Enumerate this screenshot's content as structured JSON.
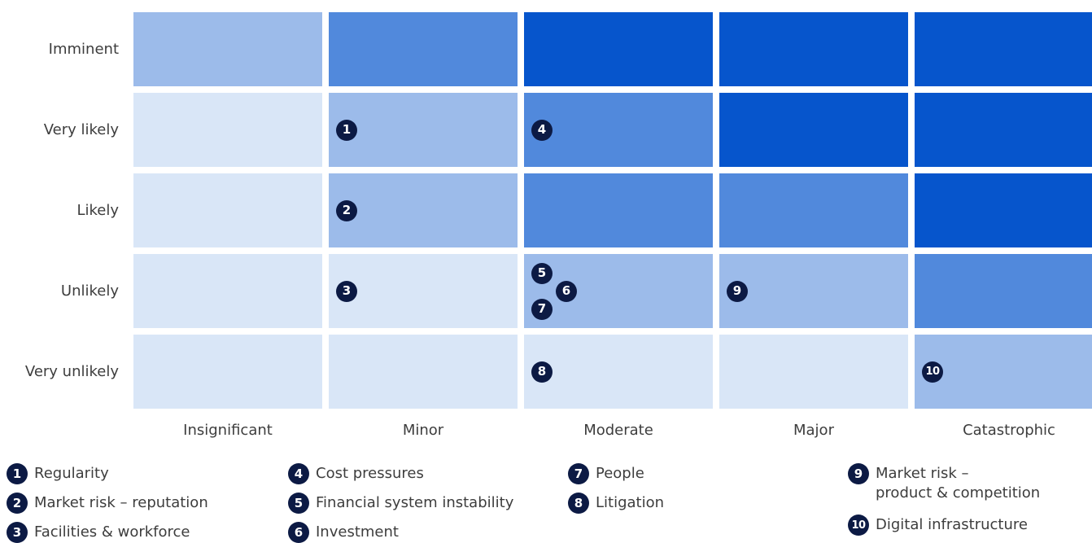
{
  "chart_data": {
    "type": "heatmap",
    "x_categories": [
      "Insignificant",
      "Minor",
      "Moderate",
      "Major",
      "Catastrophic"
    ],
    "y_categories": [
      "Imminent",
      "Very likely",
      "Likely",
      "Unlikely",
      "Very unlikely"
    ],
    "cell_levels": [
      [
        2,
        3,
        4,
        4,
        4
      ],
      [
        1,
        2,
        3,
        4,
        4
      ],
      [
        1,
        2,
        3,
        3,
        4
      ],
      [
        1,
        1,
        2,
        2,
        3
      ],
      [
        1,
        1,
        1,
        1,
        2
      ]
    ],
    "level_colors": {
      "1": "#d9e6f7",
      "2": "#9cbbea",
      "3": "#5189dc",
      "4": "#0655cc"
    },
    "marker_color": "#0c1a44",
    "risks": [
      {
        "id": "1",
        "label": "Regularity",
        "impact": "Minor",
        "likelihood": "Very likely"
      },
      {
        "id": "2",
        "label": "Market risk – reputation",
        "impact": "Minor",
        "likelihood": "Likely"
      },
      {
        "id": "3",
        "label": "Facilities & workforce",
        "impact": "Minor",
        "likelihood": "Unlikely"
      },
      {
        "id": "4",
        "label": "Cost pressures",
        "impact": "Moderate",
        "likelihood": "Very likely"
      },
      {
        "id": "5",
        "label": "Financial system instability",
        "impact": "Moderate",
        "likelihood": "Unlikely"
      },
      {
        "id": "6",
        "label": "Investment",
        "impact": "Moderate",
        "likelihood": "Unlikely"
      },
      {
        "id": "7",
        "label": "People",
        "impact": "Moderate",
        "likelihood": "Unlikely"
      },
      {
        "id": "8",
        "label": "Litigation",
        "impact": "Moderate",
        "likelihood": "Very unlikely"
      },
      {
        "id": "9",
        "label": "Market risk –\nproduct & competition",
        "impact": "Major",
        "likelihood": "Unlikely"
      },
      {
        "id": "10",
        "label": "Digital infrastructure",
        "impact": "Catastrophic",
        "likelihood": "Very unlikely"
      }
    ],
    "legend_columns": [
      [
        "1",
        "2",
        "3"
      ],
      [
        "4",
        "5",
        "6"
      ],
      [
        "7",
        "8"
      ],
      [
        "9",
        "10"
      ]
    ]
  }
}
